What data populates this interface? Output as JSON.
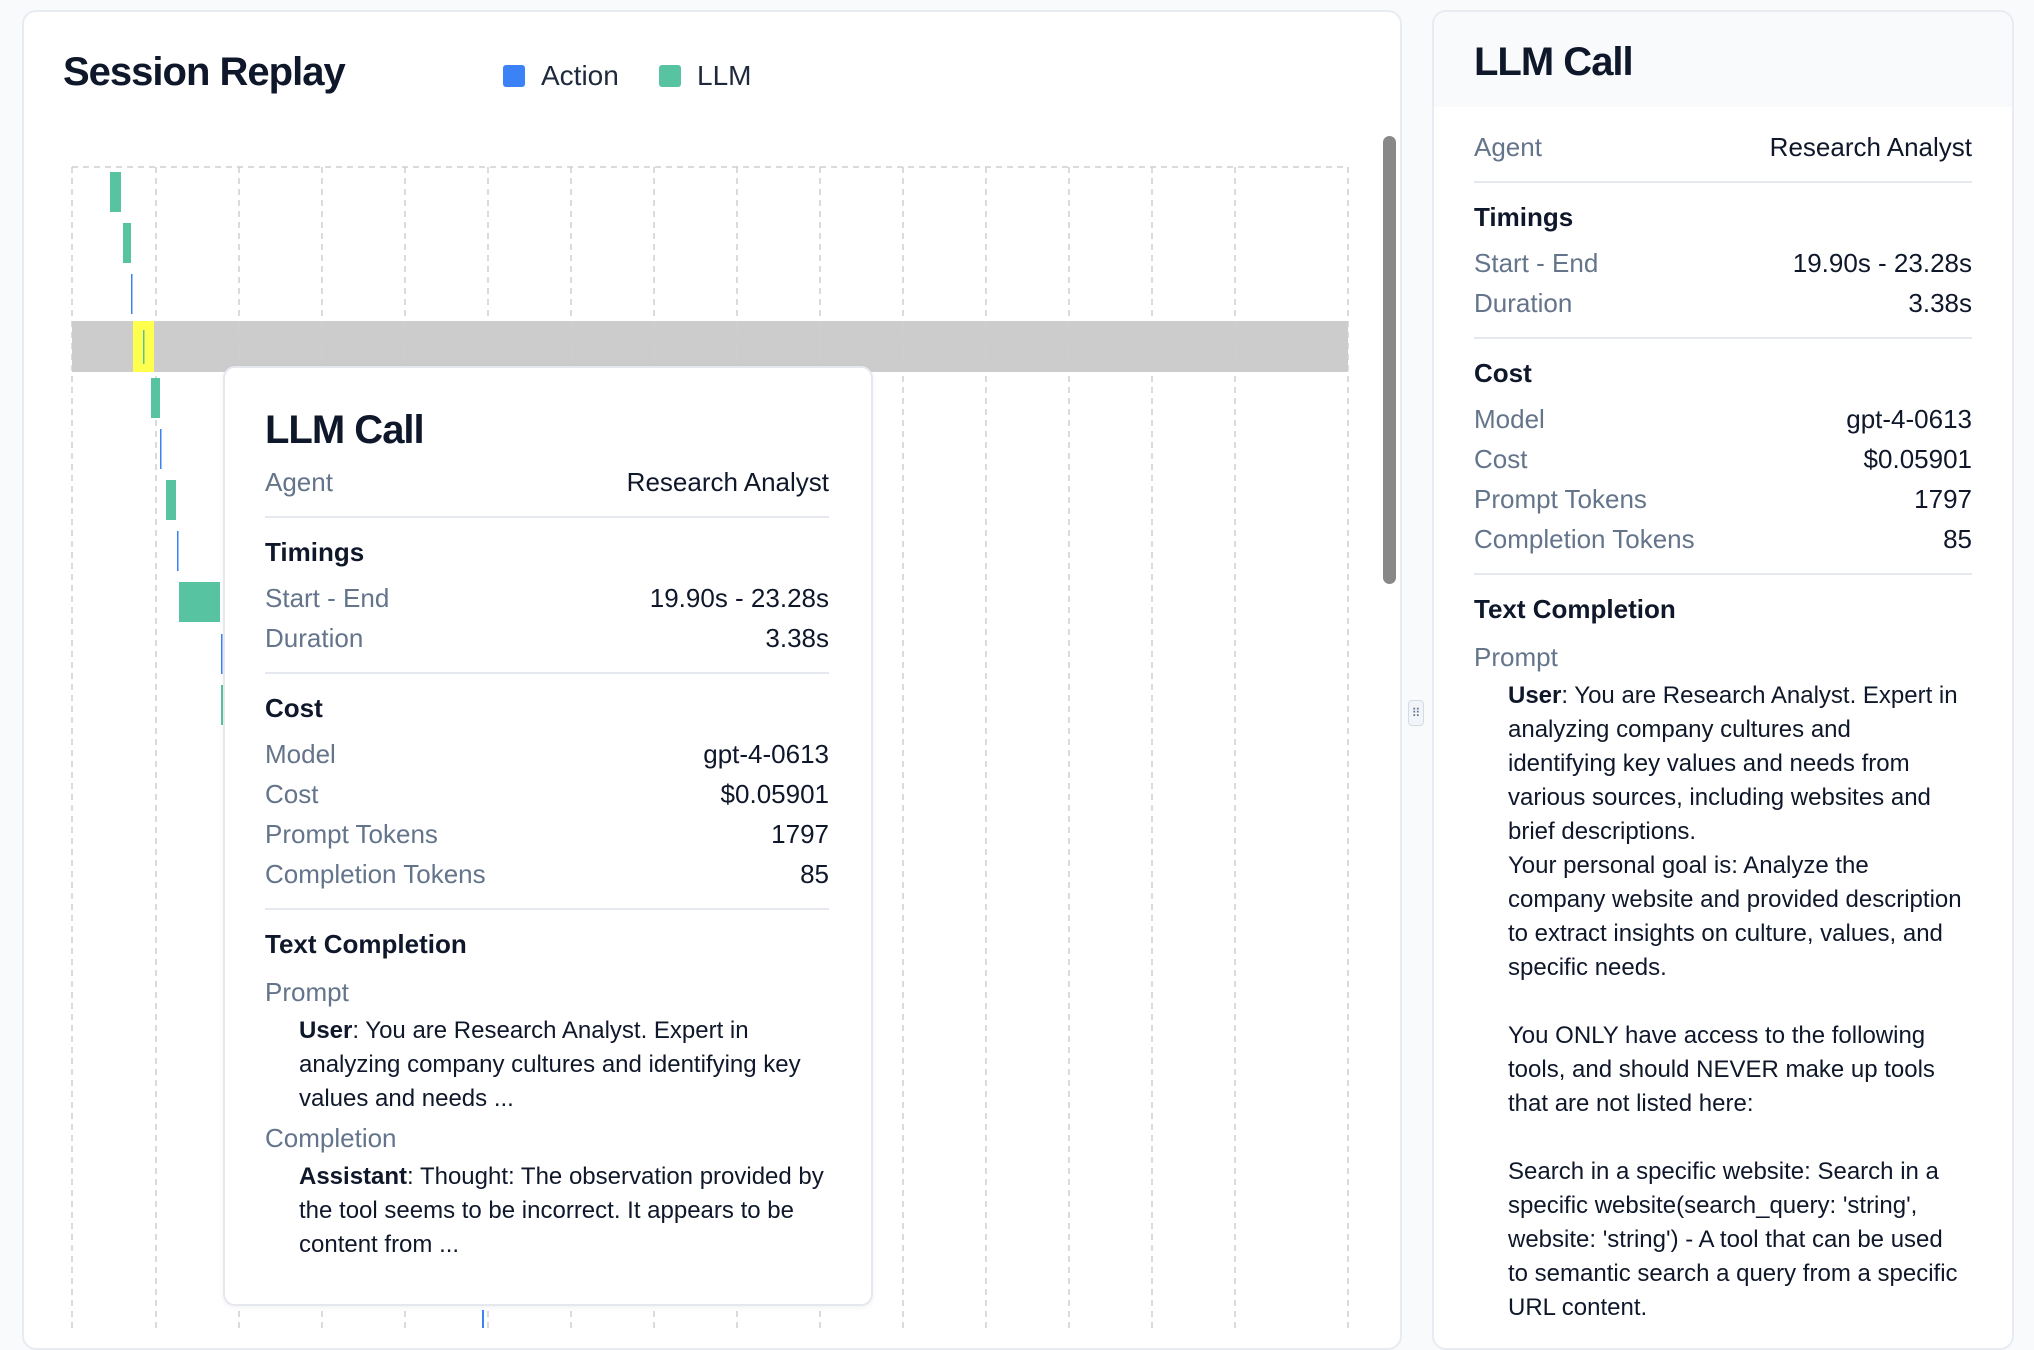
{
  "replay": {
    "title": "Session Replay",
    "legend": [
      {
        "label": "Action",
        "color": "#3b82f6"
      },
      {
        "label": "LLM",
        "color": "#58c3a0"
      }
    ],
    "highlight_color": "#ffff4d"
  },
  "tooltip": {
    "title": "LLM Call",
    "agent_label": "Agent",
    "agent": "Research Analyst",
    "timings_heading": "Timings",
    "start_end_label": "Start - End",
    "start_end": "19.90s - 23.28s",
    "duration_label": "Duration",
    "duration": "3.38s",
    "cost_heading": "Cost",
    "model_label": "Model",
    "model": "gpt-4-0613",
    "cost_label": "Cost",
    "cost": "$0.05901",
    "prompt_tokens_label": "Prompt Tokens",
    "prompt_tokens": "1797",
    "completion_tokens_label": "Completion Tokens",
    "completion_tokens": "85",
    "text_completion_heading": "Text Completion",
    "prompt_label": "Prompt",
    "user_role": "User",
    "user_text": ": You are Research Analyst. Expert in analyzing company cultures and identifying key values and needs ...",
    "completion_label": "Completion",
    "assistant_role": "Assistant",
    "assistant_text": ": Thought: The observation provided by the tool seems to be incorrect. It appears to be content from ..."
  },
  "panel": {
    "title": "LLM Call",
    "agent_label": "Agent",
    "agent": "Research Analyst",
    "timings_heading": "Timings",
    "start_end_label": "Start - End",
    "start_end": "19.90s - 23.28s",
    "duration_label": "Duration",
    "duration": "3.38s",
    "cost_heading": "Cost",
    "model_label": "Model",
    "model": "gpt-4-0613",
    "cost_label": "Cost",
    "cost": "$0.05901",
    "prompt_tokens_label": "Prompt Tokens",
    "prompt_tokens": "1797",
    "completion_tokens_label": "Completion Tokens",
    "completion_tokens": "85",
    "text_completion_heading": "Text Completion",
    "prompt_label": "Prompt",
    "user_role": "User",
    "user_text": ": You are Research Analyst. Expert in analyzing company cultures and identifying key values and needs from various sources, including websites and brief descriptions.\nYour personal goal is: Analyze the company website and provided description to extract insights on culture, values, and specific needs.\n\nYou ONLY have access to the following tools, and should NEVER make up tools that are not listed here:\n\nSearch in a specific website: Search in a specific website(search_query: 'string', website: 'string') - A tool that can be used to semantic search a query from a specific URL content."
  }
}
